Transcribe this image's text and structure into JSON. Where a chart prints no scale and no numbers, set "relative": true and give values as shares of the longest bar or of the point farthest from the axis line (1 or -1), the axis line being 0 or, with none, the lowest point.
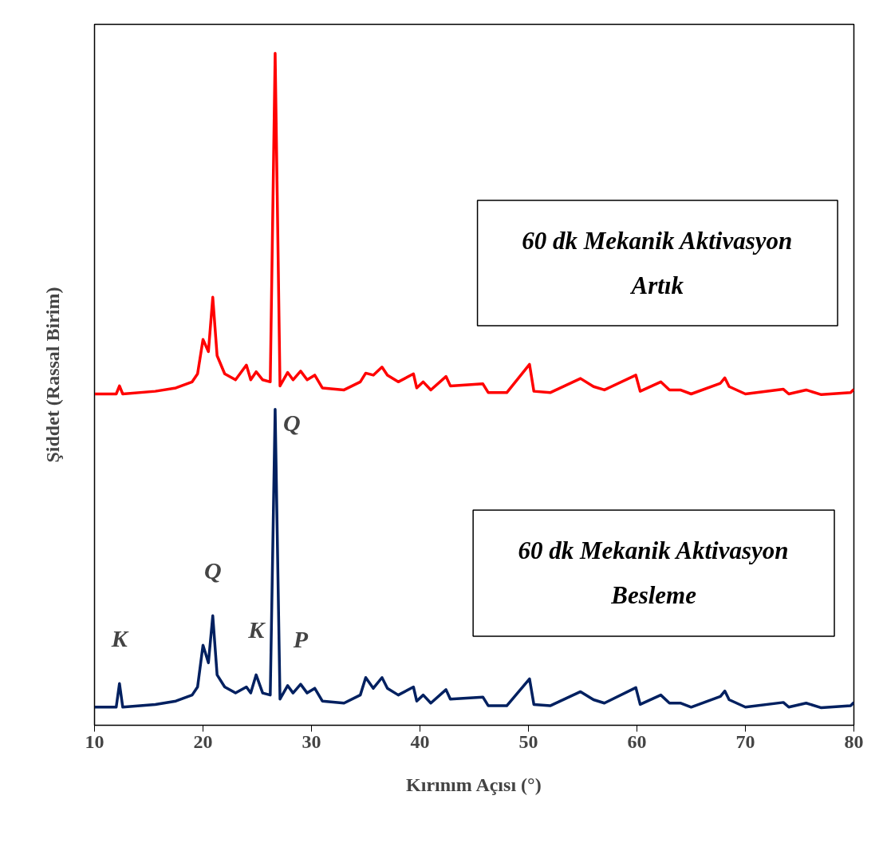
{
  "chart_data": {
    "type": "line",
    "relative": true,
    "xlabel": "Kırınım Açısı (°)",
    "ylabel": "Şiddet (Rassal Birim)",
    "x": [
      10,
      12.0,
      12.3,
      12.6,
      15.6,
      17.5,
      19,
      19.5,
      20,
      20.5,
      20.9,
      21.3,
      22,
      23,
      24,
      24.4,
      24.9,
      25.5,
      26.2,
      26.65,
      27.1,
      27.8,
      28.3,
      29,
      29.6,
      30.3,
      31,
      33,
      34.5,
      35,
      35.7,
      36.5,
      37,
      38,
      39.4,
      39.7,
      40.3,
      41,
      42.4,
      42.8,
      45.8,
      46.3,
      48,
      50.1,
      50.5,
      52,
      54.8,
      56,
      57,
      59.9,
      60.3,
      62.2,
      63,
      64,
      65,
      67.7,
      68.1,
      68.5,
      70,
      73.5,
      74,
      75.6,
      77,
      79.7,
      80
    ],
    "xlim": [
      10,
      80
    ],
    "xticks": [
      10,
      20,
      30,
      40,
      50,
      60,
      70,
      80
    ],
    "tick_labels": "x",
    "grid": false,
    "marker": "none",
    "line_style": "solid",
    "series": [
      {
        "name": "60 dk Mekanik Aktivasyon Artık",
        "color": "#ff0000",
        "values": [
          0.493,
          0.493,
          0.505,
          0.493,
          0.497,
          0.502,
          0.511,
          0.523,
          0.574,
          0.556,
          0.637,
          0.55,
          0.523,
          0.514,
          0.536,
          0.514,
          0.526,
          0.514,
          0.511,
          1.0,
          0.505,
          0.525,
          0.514,
          0.527,
          0.514,
          0.521,
          0.502,
          0.499,
          0.511,
          0.524,
          0.521,
          0.533,
          0.521,
          0.511,
          0.523,
          0.502,
          0.511,
          0.499,
          0.519,
          0.505,
          0.508,
          0.495,
          0.495,
          0.537,
          0.497,
          0.495,
          0.516,
          0.504,
          0.499,
          0.521,
          0.497,
          0.511,
          0.499,
          0.499,
          0.493,
          0.509,
          0.517,
          0.504,
          0.493,
          0.5,
          0.493,
          0.499,
          0.492,
          0.495,
          0.5
        ]
      },
      {
        "name": "60 dk Mekanik Aktivasyon Besleme",
        "color": "#002060",
        "values": [
          0.027,
          0.027,
          0.062,
          0.027,
          0.031,
          0.036,
          0.045,
          0.057,
          0.119,
          0.093,
          0.163,
          0.075,
          0.057,
          0.048,
          0.057,
          0.048,
          0.075,
          0.048,
          0.045,
          0.47,
          0.039,
          0.059,
          0.048,
          0.061,
          0.048,
          0.055,
          0.036,
          0.033,
          0.045,
          0.071,
          0.055,
          0.071,
          0.055,
          0.045,
          0.057,
          0.036,
          0.045,
          0.033,
          0.053,
          0.039,
          0.042,
          0.029,
          0.029,
          0.069,
          0.031,
          0.029,
          0.05,
          0.038,
          0.033,
          0.056,
          0.031,
          0.045,
          0.033,
          0.033,
          0.027,
          0.043,
          0.051,
          0.038,
          0.027,
          0.034,
          0.027,
          0.033,
          0.026,
          0.029,
          0.034
        ]
      }
    ],
    "annotations": [
      {
        "text": "K",
        "x": 12.3,
        "y": 0.062
      },
      {
        "text": "Q",
        "x": 20.9,
        "y": 0.163
      },
      {
        "text": "K",
        "x": 24.9,
        "y": 0.075
      },
      {
        "text": "P",
        "x": 29,
        "y": 0.061
      },
      {
        "text": "Q",
        "x": 26.65,
        "y": 0.47
      }
    ]
  }
}
